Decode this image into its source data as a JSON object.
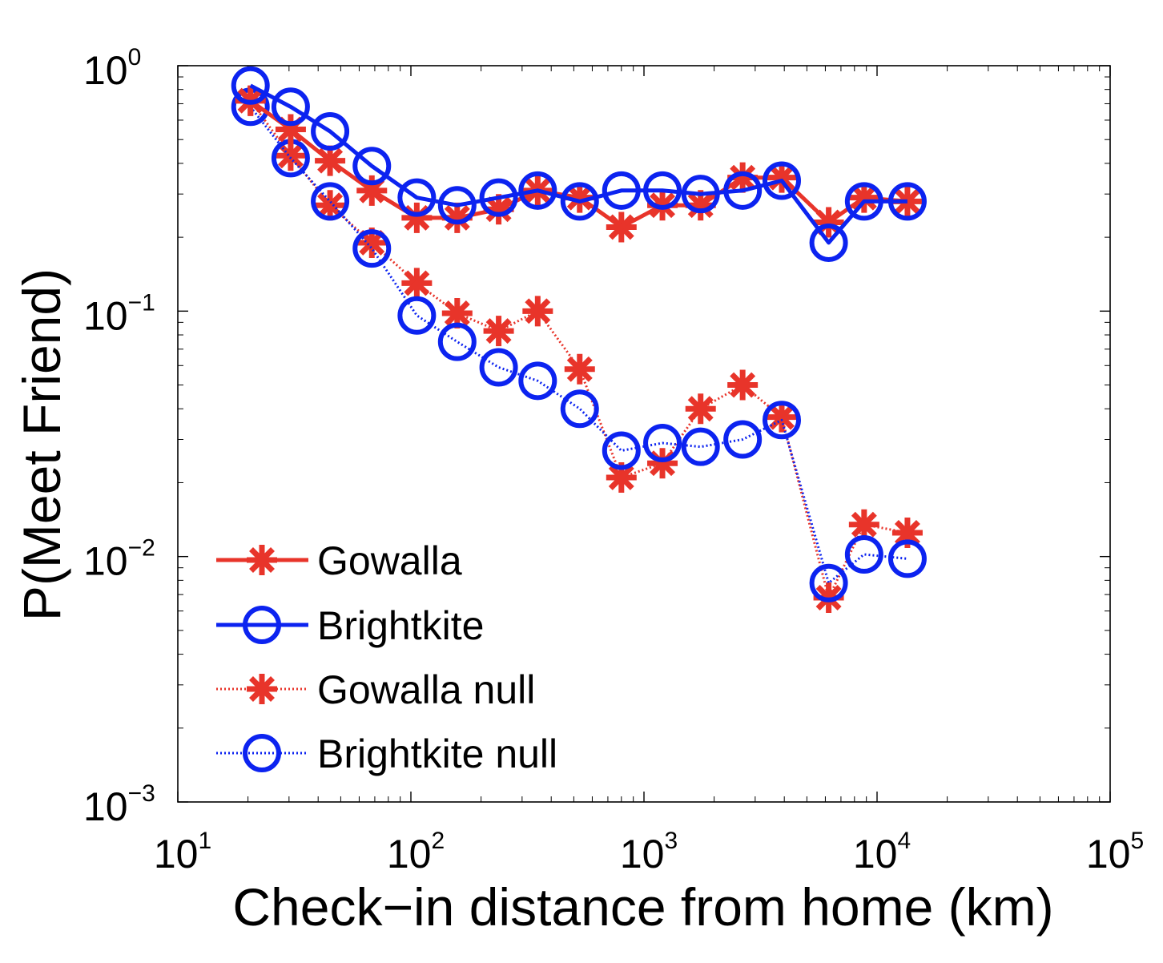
{
  "chart_data": {
    "type": "line",
    "title": "",
    "xlabel": "Check−in distance from home (km)",
    "ylabel": "P(Meet Friend)",
    "xscale": "log",
    "yscale": "log",
    "xlim": [
      10,
      100000
    ],
    "ylim": [
      0.001,
      1
    ],
    "grid": false,
    "legend_position": "bottom-left",
    "x_ticks": [
      {
        "value": 10,
        "base": "10",
        "exp": "1"
      },
      {
        "value": 100,
        "base": "10",
        "exp": "2"
      },
      {
        "value": 1000,
        "base": "10",
        "exp": "3"
      },
      {
        "value": 10000,
        "base": "10",
        "exp": "4"
      },
      {
        "value": 100000,
        "base": "10",
        "exp": "5"
      }
    ],
    "y_ticks": [
      {
        "value": 1,
        "base": "10",
        "exp": "0"
      },
      {
        "value": 0.1,
        "base": "10",
        "exp": "−1"
      },
      {
        "value": 0.01,
        "base": "10",
        "exp": "−2"
      },
      {
        "value": 0.001,
        "base": "10",
        "exp": "−3"
      }
    ],
    "series": [
      {
        "name": "Gowalla",
        "color": "#e8342a",
        "marker": "asterisk",
        "line": "solid",
        "x": [
          20.5,
          30.5,
          45,
          68,
          106,
          158,
          238,
          350,
          530,
          800,
          1200,
          1750,
          2650,
          3900,
          6200,
          8800,
          13500
        ],
        "y": [
          0.72,
          0.55,
          0.41,
          0.31,
          0.24,
          0.24,
          0.26,
          0.31,
          0.29,
          0.22,
          0.27,
          0.27,
          0.35,
          0.35,
          0.23,
          0.29,
          0.28
        ]
      },
      {
        "name": "Brightkite",
        "color": "#0c23f0",
        "marker": "circle",
        "line": "solid",
        "x": [
          20.5,
          30.5,
          45,
          68,
          106,
          158,
          238,
          350,
          530,
          800,
          1200,
          1750,
          2650,
          3900,
          6200,
          8800,
          13500
        ],
        "y": [
          0.83,
          0.68,
          0.54,
          0.39,
          0.29,
          0.27,
          0.29,
          0.31,
          0.28,
          0.31,
          0.31,
          0.3,
          0.31,
          0.34,
          0.19,
          0.28,
          0.28
        ]
      },
      {
        "name": "Gowalla null",
        "color": "#e8342a",
        "marker": "asterisk",
        "line": "dotted",
        "x": [
          20.5,
          30.5,
          45,
          68,
          106,
          158,
          238,
          350,
          530,
          800,
          1200,
          1750,
          2650,
          3900,
          6200,
          8800,
          13500
        ],
        "y": [
          0.72,
          0.43,
          0.27,
          0.19,
          0.13,
          0.098,
          0.083,
          0.1,
          0.058,
          0.021,
          0.024,
          0.04,
          0.05,
          0.037,
          0.0068,
          0.0135,
          0.0125
        ]
      },
      {
        "name": "Brightkite null",
        "color": "#0c23f0",
        "marker": "circle",
        "line": "dotted",
        "x": [
          20.5,
          30.5,
          45,
          68,
          106,
          158,
          238,
          350,
          530,
          800,
          1200,
          1750,
          2650,
          3900,
          6200,
          8800,
          13500
        ],
        "y": [
          0.68,
          0.42,
          0.28,
          0.18,
          0.096,
          0.075,
          0.059,
          0.052,
          0.04,
          0.027,
          0.029,
          0.028,
          0.03,
          0.036,
          0.0078,
          0.0102,
          0.0098
        ]
      }
    ]
  }
}
